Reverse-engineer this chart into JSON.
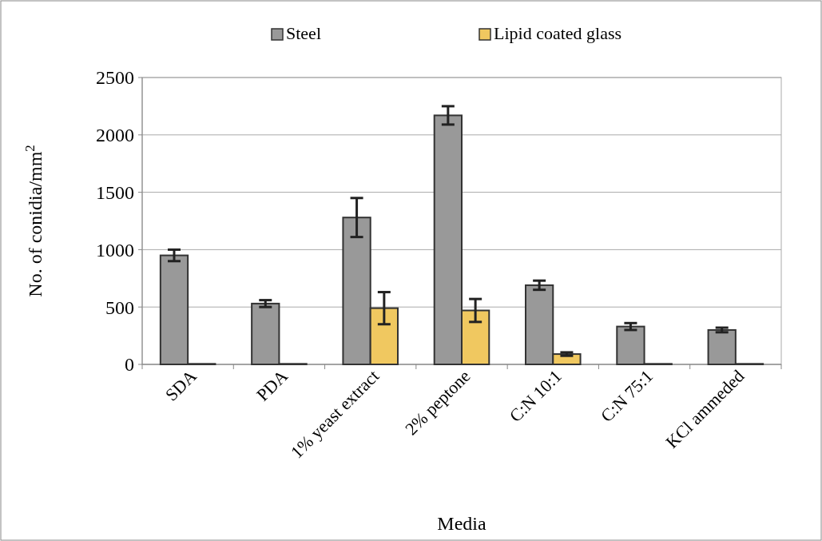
{
  "chart_data": {
    "type": "bar",
    "xlabel": "Media",
    "ylabel": "No. of conidia/mm$^{2}$",
    "categories": [
      "SDA",
      "PDA",
      "1% yeast extract",
      "2% peptone",
      "C:N 10:1",
      "C:N 75:1",
      "KCl ammeded"
    ],
    "series": [
      {
        "name": "Steel",
        "color": "#999999",
        "values": [
          950,
          530,
          1280,
          2170,
          690,
          330,
          300
        ],
        "errors": [
          50,
          30,
          170,
          80,
          40,
          30,
          20
        ]
      },
      {
        "name": "Lipid coated glass",
        "color": "#f0c860",
        "values": [
          5,
          5,
          490,
          470,
          90,
          5,
          5
        ],
        "errors": [
          null,
          null,
          140,
          100,
          15,
          null,
          null
        ]
      }
    ],
    "ylim": [
      0,
      2500
    ],
    "yticks": [
      0,
      500,
      1000,
      1500,
      2000,
      2500
    ],
    "grid": "y",
    "legend": "top"
  }
}
